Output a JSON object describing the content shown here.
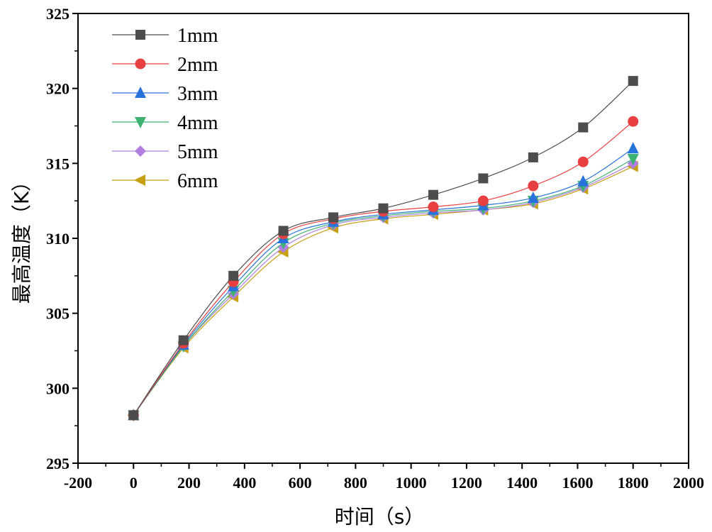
{
  "chart_data": {
    "type": "line",
    "title": "",
    "xlabel": "时间（s）",
    "ylabel": "最高温度（K）",
    "xlim": [
      -200,
      2000
    ],
    "ylim": [
      295,
      325
    ],
    "xticks": [
      -200,
      0,
      200,
      400,
      600,
      800,
      1000,
      1200,
      1400,
      1600,
      1800,
      2000
    ],
    "yticks": [
      295,
      300,
      305,
      310,
      315,
      320,
      325
    ],
    "legend_position": "top-left",
    "x": [
      0,
      180,
      360,
      540,
      720,
      900,
      1080,
      1260,
      1440,
      1620,
      1800
    ],
    "series": [
      {
        "name": "1mm",
        "color": "#4d4d4d",
        "marker": "square",
        "values": [
          298.2,
          303.2,
          307.5,
          310.5,
          311.4,
          312.0,
          312.9,
          314.0,
          315.4,
          317.4,
          320.5
        ]
      },
      {
        "name": "2mm",
        "color": "#e84040",
        "marker": "circle",
        "values": [
          298.2,
          303.0,
          307.1,
          310.3,
          311.3,
          311.8,
          312.1,
          312.5,
          313.5,
          315.1,
          317.8
        ]
      },
      {
        "name": "3mm",
        "color": "#2873db",
        "marker": "triangle-up",
        "values": [
          298.2,
          302.9,
          306.8,
          310.0,
          311.1,
          311.6,
          311.9,
          312.2,
          312.7,
          313.8,
          316.0
        ]
      },
      {
        "name": "4mm",
        "color": "#3cb371",
        "marker": "triangle-down",
        "values": [
          298.2,
          302.8,
          306.5,
          309.7,
          311.0,
          311.5,
          311.8,
          312.0,
          312.5,
          313.5,
          315.3
        ]
      },
      {
        "name": "5mm",
        "color": "#b07fe0",
        "marker": "diamond",
        "values": [
          298.2,
          302.8,
          306.3,
          309.4,
          310.9,
          311.4,
          311.7,
          311.9,
          312.4,
          313.4,
          315.0
        ]
      },
      {
        "name": "6mm",
        "color": "#c8a014",
        "marker": "triangle-left",
        "values": [
          298.2,
          302.7,
          306.1,
          309.1,
          310.7,
          311.3,
          311.6,
          311.9,
          312.3,
          313.3,
          314.8
        ]
      }
    ]
  }
}
